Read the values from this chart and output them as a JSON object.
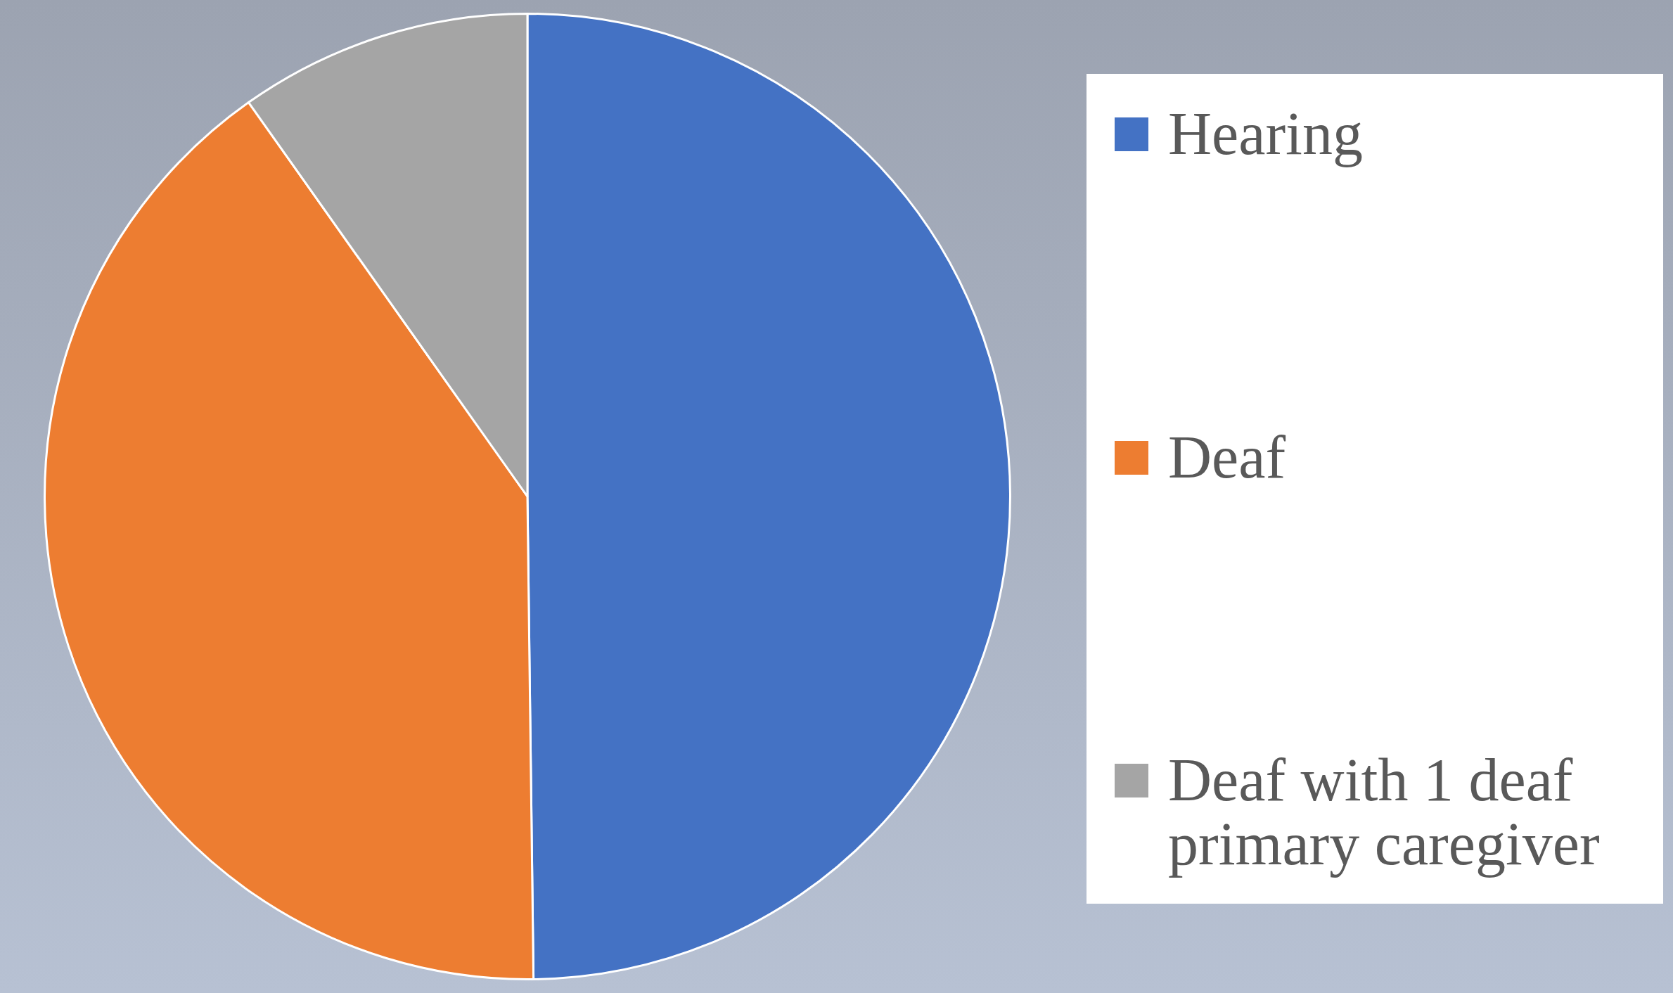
{
  "chart_data": {
    "type": "pie",
    "categories": [
      "Hearing",
      "Deaf",
      "Deaf with 1 deaf primary caregiver"
    ],
    "values": [
      49.8,
      40.4,
      9.8
    ],
    "colors": [
      "#4472c4",
      "#ed7d31",
      "#a5a5a5"
    ],
    "legend": "right"
  }
}
